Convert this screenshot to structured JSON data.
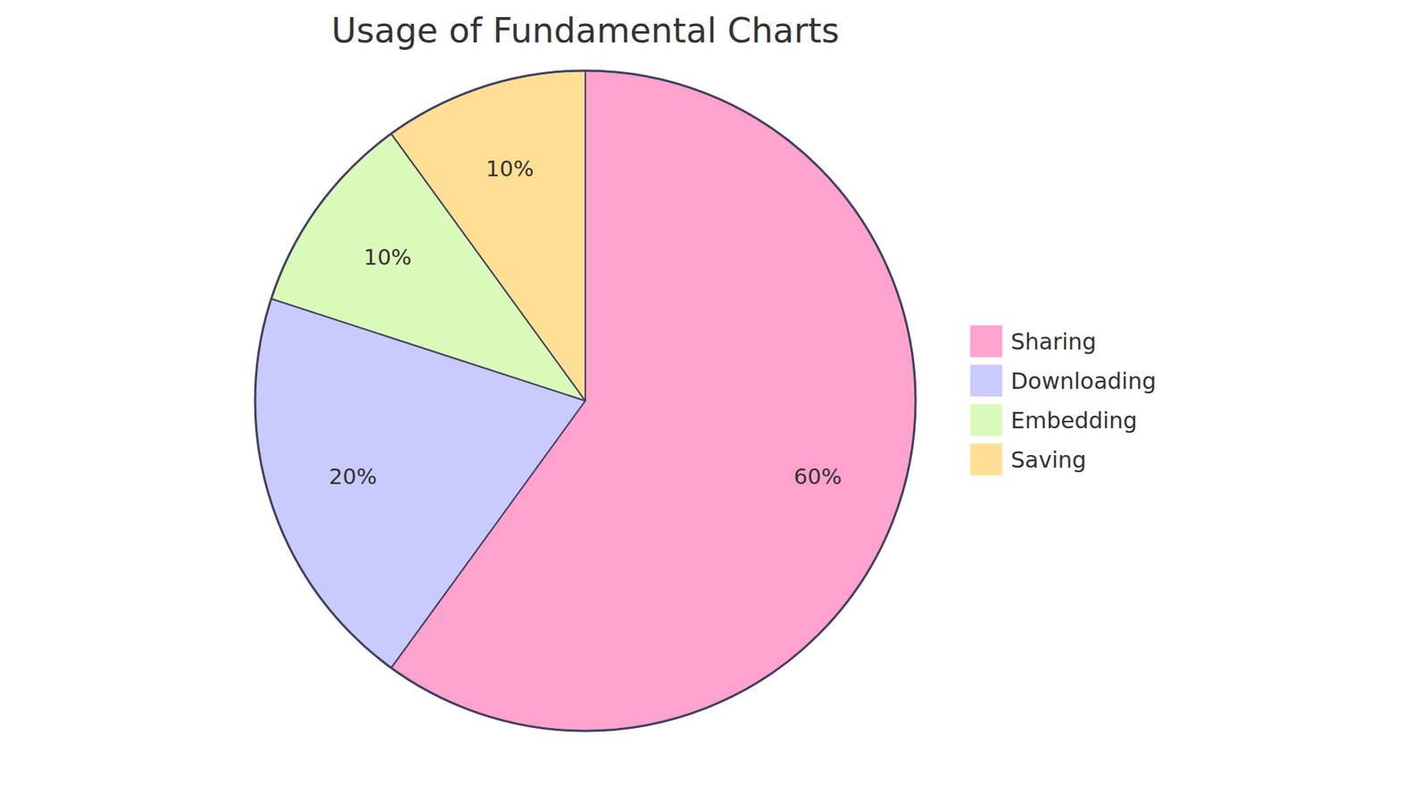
{
  "chart_data": {
    "type": "pie",
    "title": "Usage of Fundamental Charts",
    "categories": [
      "Sharing",
      "Downloading",
      "Embedding",
      "Saving"
    ],
    "values": [
      60,
      20,
      10,
      10
    ],
    "value_labels": [
      "60%",
      "20%",
      "10%",
      "10%"
    ],
    "colors": [
      "#fea3cd",
      "#c9cafd",
      "#dafab9",
      "#fedf94"
    ],
    "data_labels": true,
    "legend": "right"
  }
}
